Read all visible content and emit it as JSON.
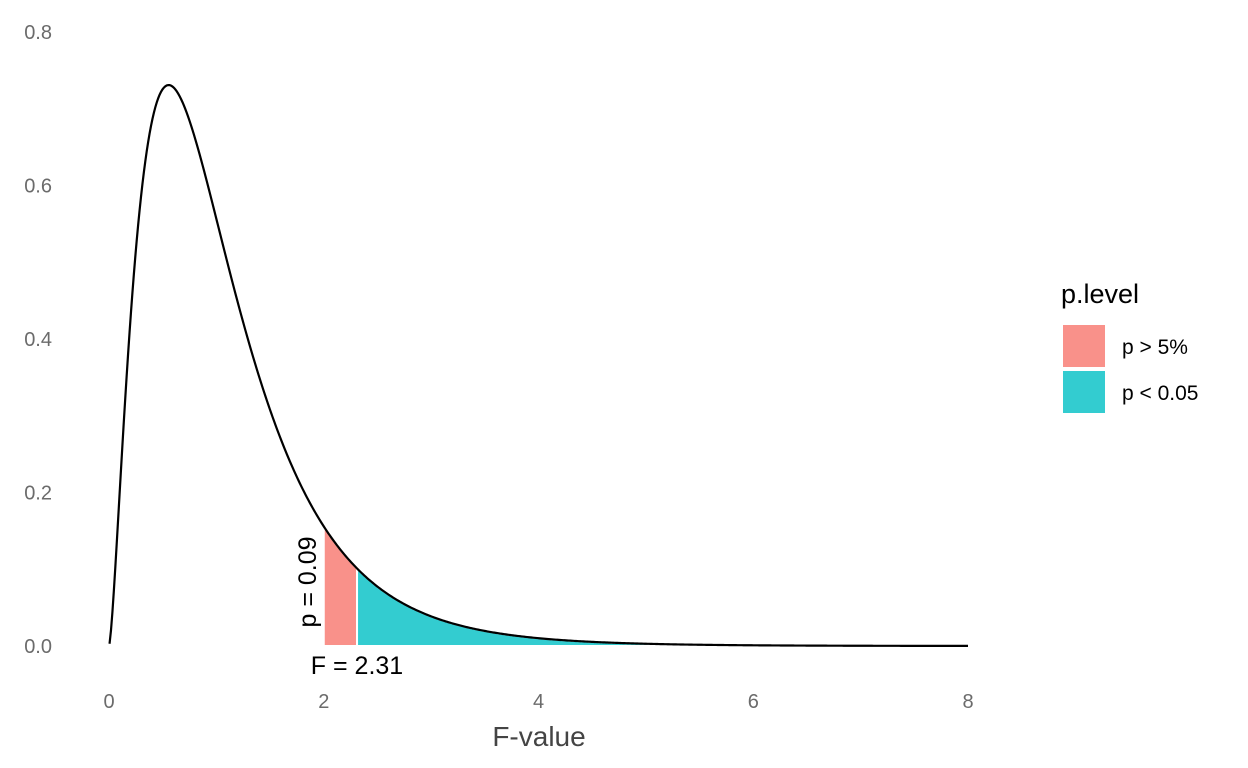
{
  "chart_data": {
    "type": "area",
    "title": "",
    "xlabel": "F-value",
    "ylabel": "",
    "xlim": [
      0,
      8
    ],
    "ylim": [
      0,
      0.8
    ],
    "x_ticks": [
      0,
      2,
      4,
      6,
      8
    ],
    "x_tick_labels": [
      "0",
      "2",
      "4",
      "6",
      "8"
    ],
    "y_ticks": [
      0,
      0.2,
      0.4,
      0.6,
      0.8
    ],
    "y_tick_labels": [
      "0.0",
      "0.2",
      "0.4",
      "0.6",
      "0.8"
    ],
    "grid": false,
    "distribution": {
      "name": "F",
      "df1": 5,
      "df2": 25
    },
    "series": [
      {
        "name": "p > 5%",
        "x_range": [
          2.0,
          2.31
        ],
        "color": "#F8766D"
      },
      {
        "name": "p < 0.05",
        "x_range": [
          2.31,
          8.0
        ],
        "color": "#00BFC4"
      }
    ],
    "curve_color": "#000000",
    "legend": {
      "title": "p.level",
      "position": "right",
      "entries": [
        {
          "label": "p > 5%",
          "color": "#F8766D"
        },
        {
          "label": "p < 0.05",
          "color": "#00BFC4"
        }
      ]
    },
    "annotations": [
      {
        "text": "F = 2.31",
        "x": 2.31,
        "y": 0
      },
      {
        "text": "p = 0.09",
        "x": 2.0,
        "y": 0.07,
        "rotation": -90
      }
    ]
  }
}
